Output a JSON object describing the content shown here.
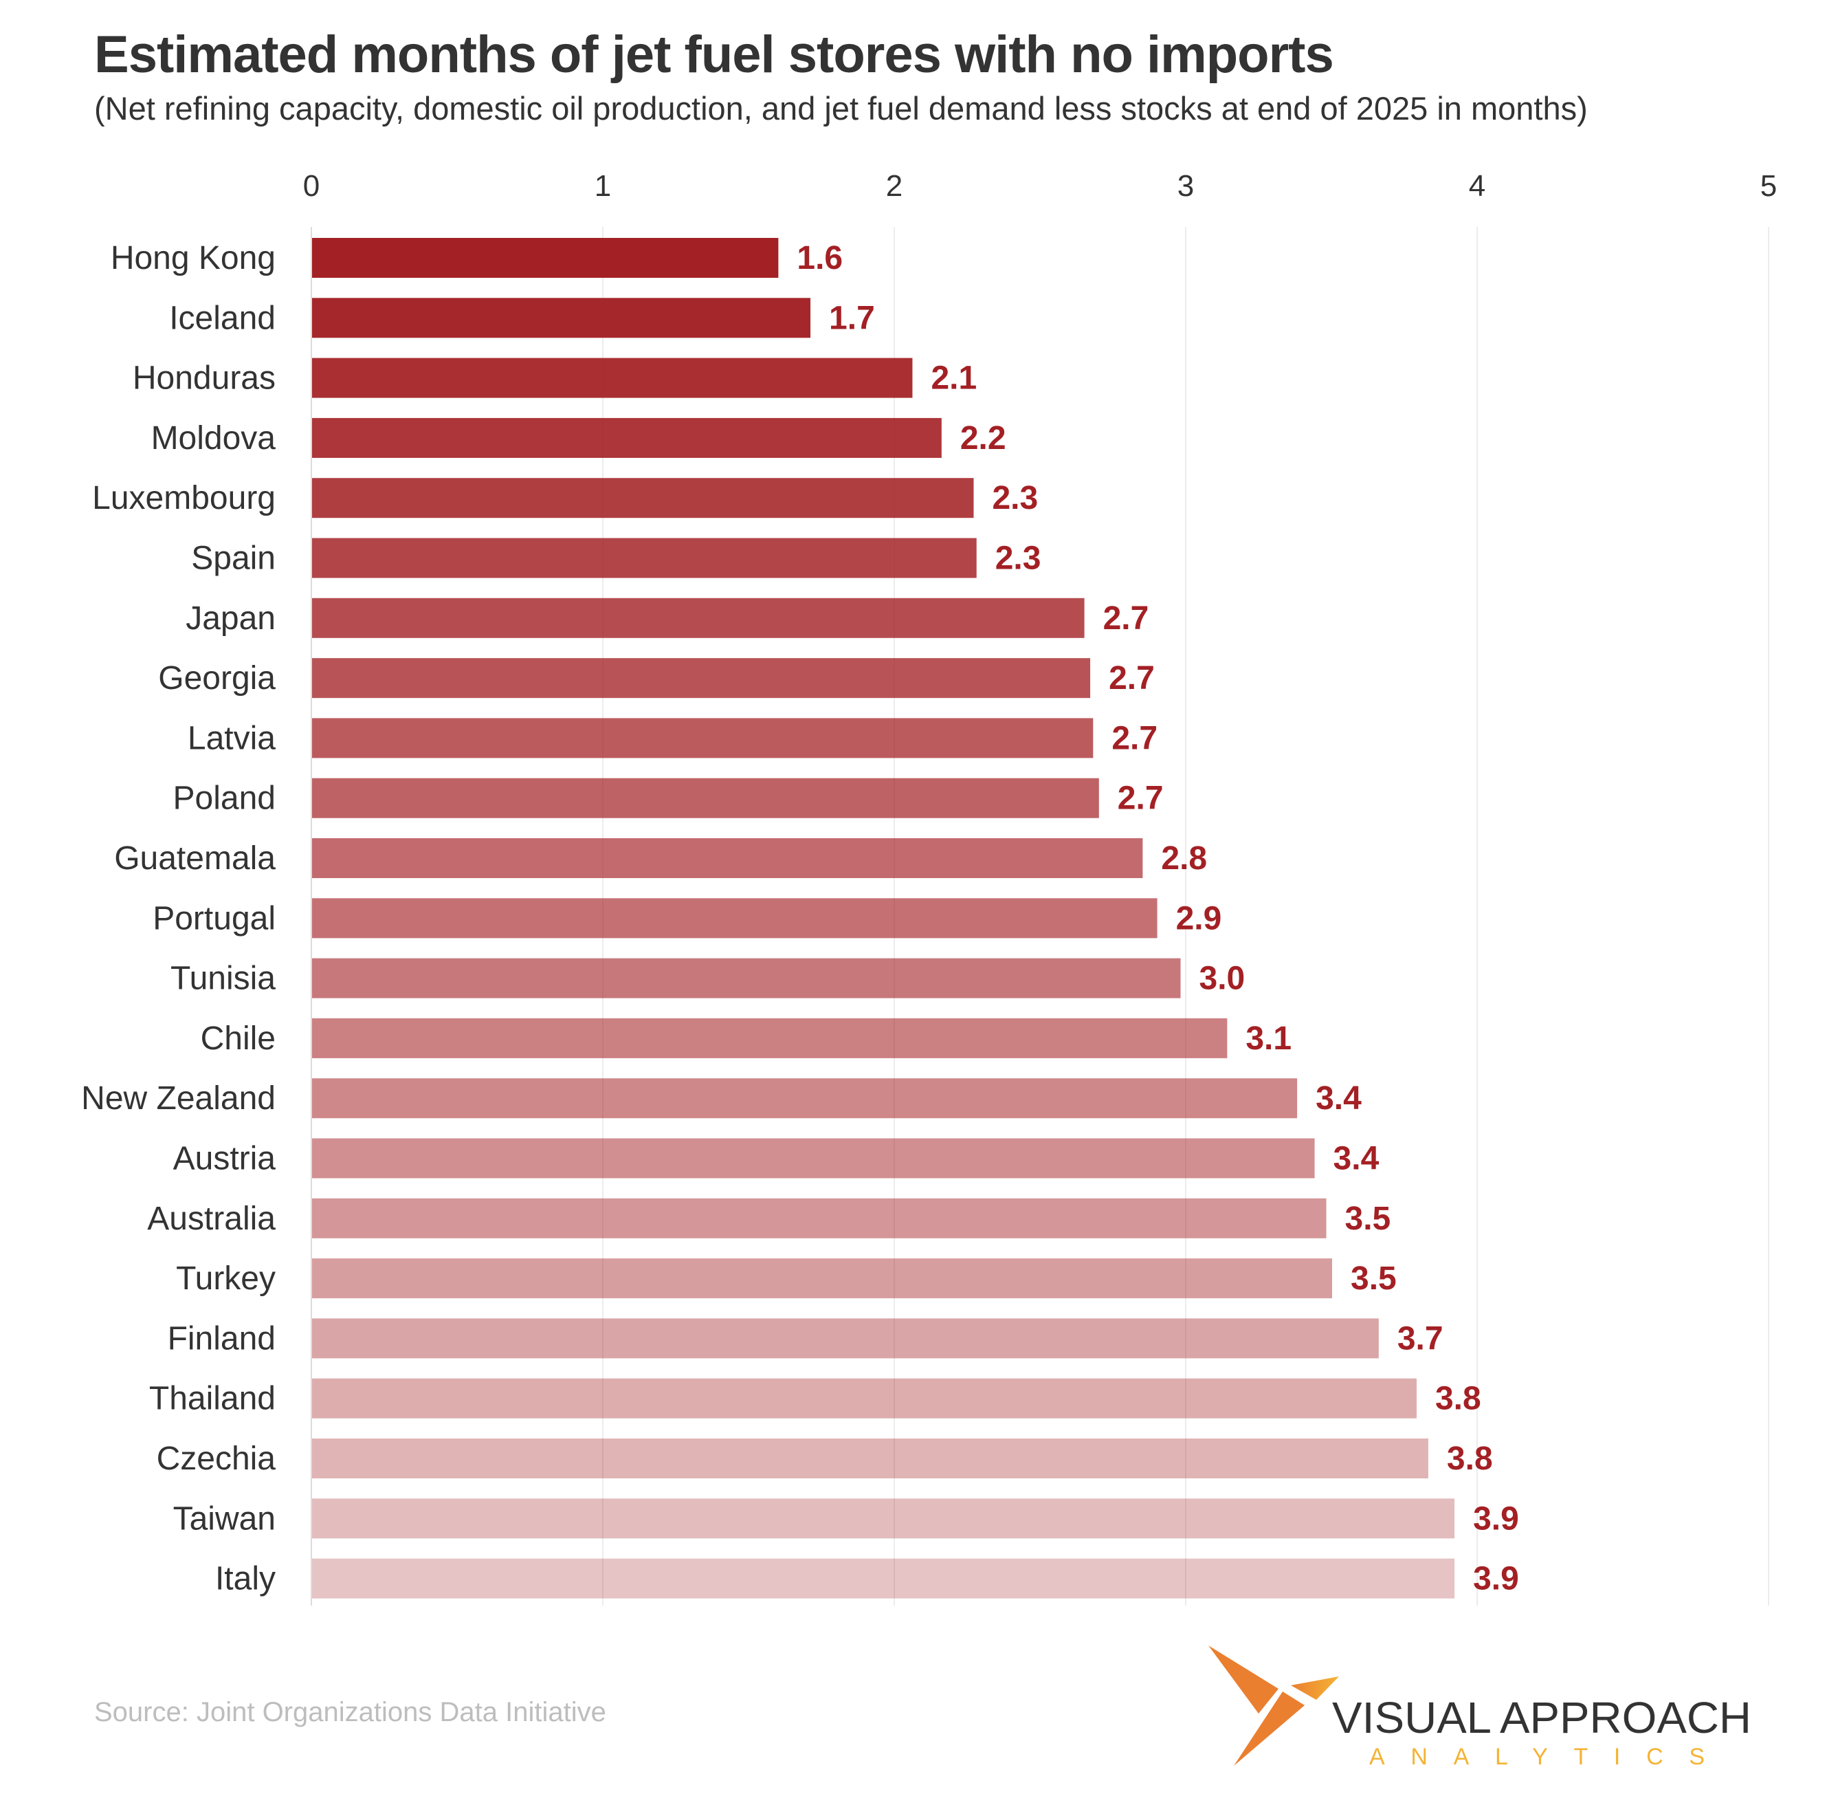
{
  "chart_data": {
    "type": "bar",
    "orientation": "horizontal",
    "title": "Estimated months of jet fuel stores with no imports",
    "subtitle": "(Net refining capacity, domestic oil production, and jet fuel demand less stocks at end of 2025 in months)",
    "xlim": [
      0,
      5
    ],
    "x_ticks": [
      "0",
      "1",
      "2",
      "3",
      "4",
      "5"
    ],
    "x_axis_position": "top",
    "grid": true,
    "bar_color": "#a32024",
    "label_color": "#a32024",
    "categories": [
      "Hong Kong",
      "Iceland",
      "Honduras",
      "Moldova",
      "Luxembourg",
      "Spain",
      "Japan",
      "Georgia",
      "Latvia",
      "Poland",
      "Guatemala",
      "Portugal",
      "Tunisia",
      "Chile",
      "New Zealand",
      "Austria",
      "Australia",
      "Turkey",
      "Finland",
      "Thailand",
      "Czechia",
      "Taiwan",
      "Italy"
    ],
    "values": [
      1.6,
      1.71,
      2.06,
      2.16,
      2.27,
      2.28,
      2.65,
      2.67,
      2.68,
      2.7,
      2.85,
      2.9,
      2.98,
      3.14,
      3.38,
      3.44,
      3.48,
      3.5,
      3.66,
      3.79,
      3.83,
      3.92,
      3.92
    ],
    "data_labels": [
      "1.6",
      "1.7",
      "2.1",
      "2.2",
      "2.3",
      "2.3",
      "2.7",
      "2.7",
      "2.7",
      "2.7",
      "2.8",
      "2.9",
      "3.0",
      "3.1",
      "3.4",
      "3.4",
      "3.5",
      "3.5",
      "3.7",
      "3.8",
      "3.8",
      "3.9",
      "3.9"
    ]
  },
  "source": "Source:  Joint Organizations Data Initiative",
  "logo": {
    "line1": "VISUAL APPROACH",
    "line2": "ANALYTICS",
    "orange": "#ea7f30",
    "yellow": "#f5b335",
    "text_color": "#333333"
  }
}
